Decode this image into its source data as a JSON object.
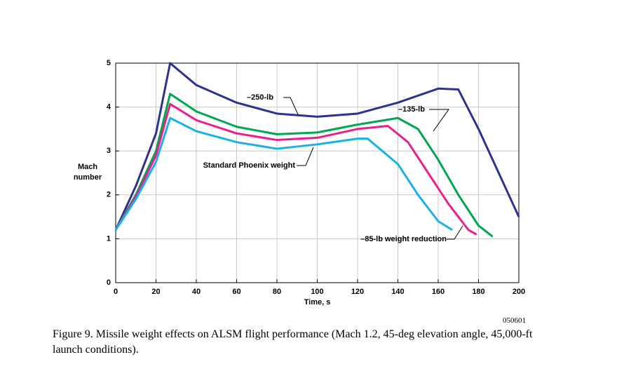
{
  "chart_data": {
    "type": "line",
    "xlabel": "Time, s",
    "ylabel": "Mach number",
    "xlim": [
      0,
      200
    ],
    "ylim": [
      0,
      5
    ],
    "xticks": [
      0,
      20,
      40,
      60,
      80,
      100,
      120,
      140,
      160,
      180,
      200
    ],
    "yticks": [
      0,
      1,
      2,
      3,
      4,
      5
    ],
    "grid": true,
    "series": [
      {
        "name": "–250-lb",
        "color": "#2e3192",
        "x": [
          0,
          10,
          20,
          27,
          40,
          60,
          80,
          100,
          120,
          140,
          160,
          170,
          180,
          190,
          200
        ],
        "values": [
          1.2,
          2.2,
          3.4,
          5.0,
          4.5,
          4.1,
          3.85,
          3.78,
          3.85,
          4.1,
          4.42,
          4.4,
          3.5,
          2.5,
          1.5
        ]
      },
      {
        "name": "–135-lb",
        "color": "#00a651",
        "x": [
          0,
          10,
          20,
          27,
          40,
          60,
          80,
          100,
          120,
          140,
          150,
          160,
          170,
          180,
          187
        ],
        "values": [
          1.2,
          2.0,
          3.0,
          4.3,
          3.9,
          3.55,
          3.38,
          3.42,
          3.6,
          3.75,
          3.5,
          2.8,
          2.0,
          1.3,
          1.05
        ]
      },
      {
        "name": "–85-lb weight reduction",
        "color": "#ec1e8c",
        "x": [
          0,
          10,
          20,
          27,
          40,
          60,
          80,
          100,
          120,
          135,
          145,
          155,
          165,
          175,
          179
        ],
        "values": [
          1.2,
          1.95,
          2.9,
          4.07,
          3.7,
          3.4,
          3.25,
          3.3,
          3.5,
          3.57,
          3.2,
          2.5,
          1.8,
          1.2,
          1.1
        ]
      },
      {
        "name": "Standard Phoenix weight",
        "color": "#1ab0e8",
        "x": [
          0,
          10,
          20,
          27,
          40,
          60,
          80,
          100,
          120,
          125,
          140,
          150,
          160,
          167
        ],
        "values": [
          1.2,
          1.9,
          2.75,
          3.75,
          3.45,
          3.2,
          3.05,
          3.15,
          3.28,
          3.28,
          2.7,
          2.0,
          1.4,
          1.2
        ]
      }
    ],
    "figure_id": "050601",
    "caption": "Figure 9. Missile weight effects on ALSM flight performance (Mach 1.2, 45-deg elevation angle, 45,000-ft launch conditions)."
  }
}
